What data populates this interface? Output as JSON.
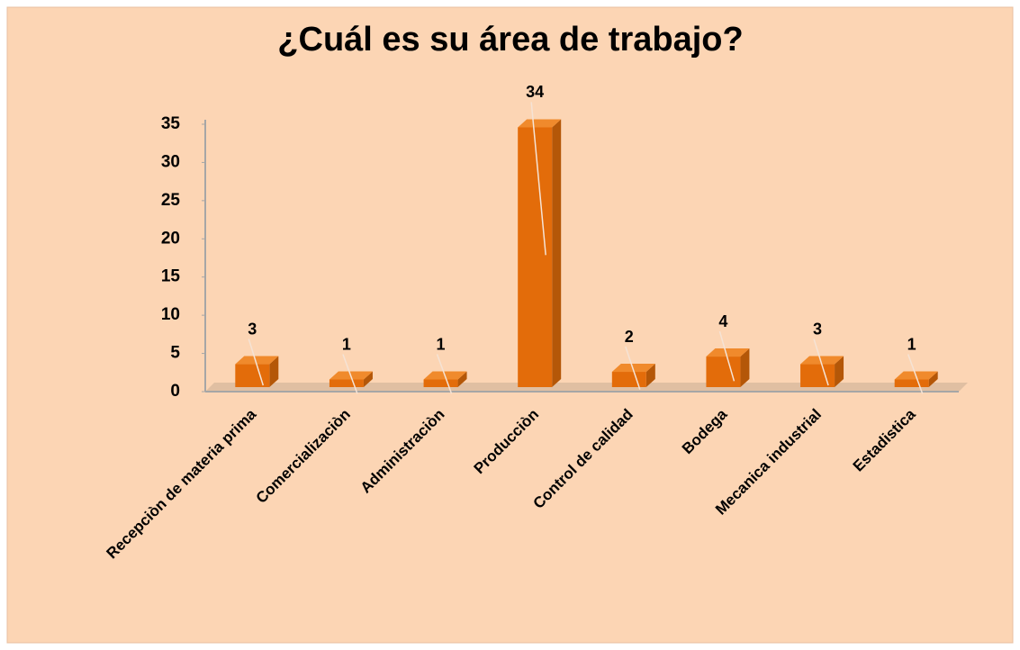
{
  "chart_data": {
    "type": "bar3d",
    "title": "¿Cuál es su área de trabajo?",
    "categories": [
      "Recepciòn de materia prima",
      "Comercializaciòn",
      "Administraciòn",
      "Producciòn",
      "Control de calidad",
      "Bodega",
      "Mecanica industrial",
      "Estadistica"
    ],
    "values": [
      3,
      1,
      1,
      34,
      2,
      4,
      3,
      1
    ],
    "color": "#e36c0a",
    "ylim": [
      0,
      35
    ],
    "yticks": [
      0,
      5,
      10,
      15,
      20,
      25,
      30,
      35
    ],
    "grid": false
  }
}
